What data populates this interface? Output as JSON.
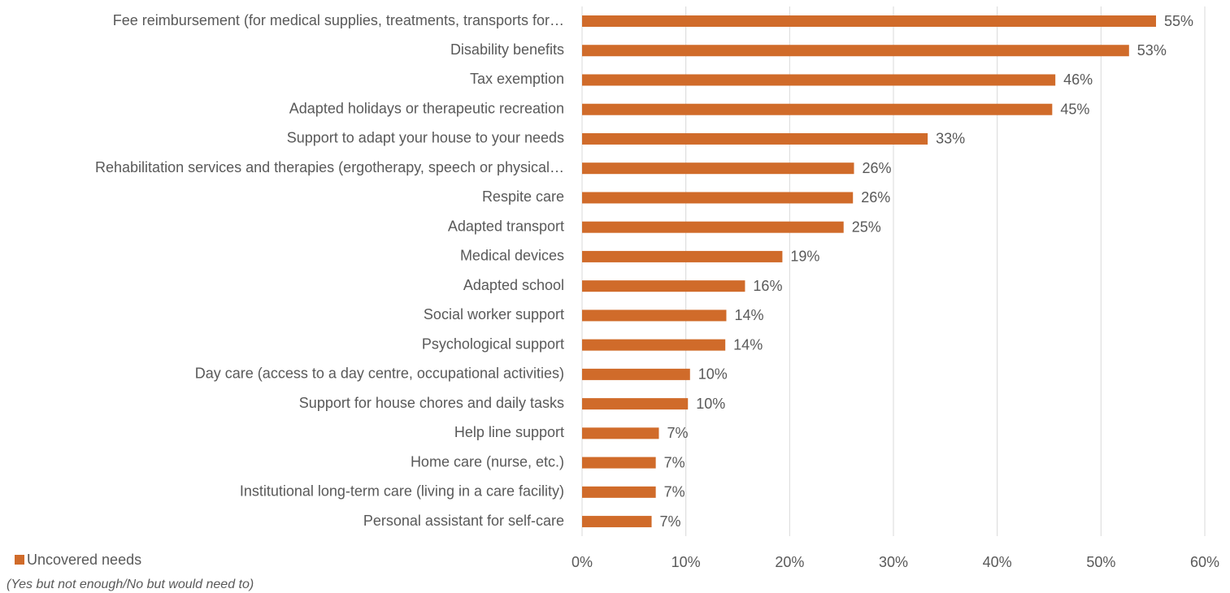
{
  "chart_data": {
    "type": "bar",
    "orientation": "horizontal",
    "categories": [
      "Fee reimbursement (for medical supplies, treatments, transports for…",
      "Disability benefits",
      "Tax exemption",
      "Adapted holidays or therapeutic recreation",
      "Support to adapt your house to your needs",
      "Rehabilitation services and therapies (ergotherapy, speech or physical…",
      "Respite care",
      "Adapted transport",
      "Medical devices",
      "Adapted school",
      "Social worker support",
      "Psychological support",
      "Day care (access to a day centre, occupational activities)",
      "Support for house chores and daily tasks",
      "Help line support",
      "Home care (nurse, etc.)",
      "Institutional long-term care (living in a care facility)",
      "Personal assistant for self-care"
    ],
    "series": [
      {
        "name": "Uncovered needs",
        "color": "#d06b2a",
        "values": [
          55.3,
          52.7,
          45.6,
          45.3,
          33.3,
          26.2,
          26.1,
          25.2,
          19.3,
          15.7,
          13.9,
          13.8,
          10.4,
          10.2,
          7.4,
          7.1,
          7.1,
          6.7
        ],
        "value_labels": [
          "55%",
          "53%",
          "46%",
          "45%",
          "33%",
          "26%",
          "26%",
          "25%",
          "19%",
          "16%",
          "14%",
          "14%",
          "10%",
          "10%",
          "7%",
          "7%",
          "7%",
          "7%"
        ]
      }
    ],
    "legend_note": "(Yes but not enough/No but would need to)",
    "xlim": [
      0,
      60
    ],
    "xticks": [
      {
        "value": 0,
        "label": "0%"
      },
      {
        "value": 10,
        "label": "10%"
      },
      {
        "value": 20,
        "label": "20%"
      },
      {
        "value": 30,
        "label": "30%"
      },
      {
        "value": 40,
        "label": "40%"
      },
      {
        "value": 50,
        "label": "50%"
      },
      {
        "value": 60,
        "label": "60%"
      }
    ],
    "grid": true,
    "legend": "bottom-left"
  }
}
